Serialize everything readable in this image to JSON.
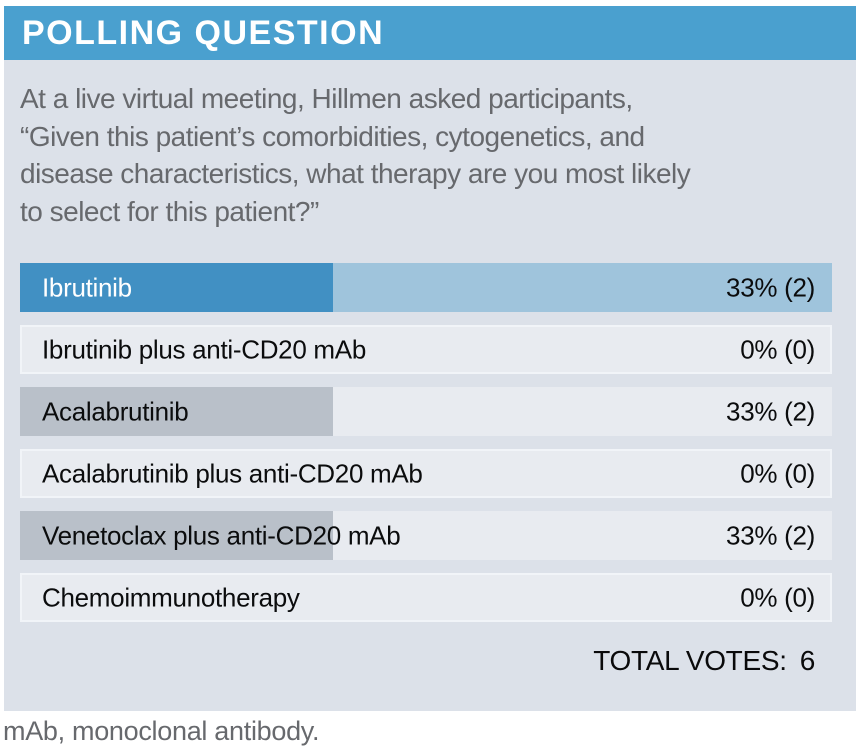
{
  "header": {
    "title": "POLLING QUESTION"
  },
  "question": "At a live virtual meeting, Hillmen asked participants,\n“Given this patient’s comorbidities, cytogenetics, and\ndisease characteristics, what therapy are you most likely\nto select for this patient?”",
  "results": {
    "options": [
      {
        "label": "Ibrutinib",
        "value_display": "33% (2)",
        "percent": 33,
        "count": 2,
        "fill": "blue",
        "bar_width_pct": 38.5
      },
      {
        "label": "Ibrutinib plus anti-CD20 mAb",
        "value_display": "0% (0)",
        "percent": 0,
        "count": 0,
        "fill": "none",
        "bar_width_pct": 0
      },
      {
        "label": "Acalabrutinib",
        "value_display": "33% (2)",
        "percent": 33,
        "count": 2,
        "fill": "gray",
        "bar_width_pct": 38.5
      },
      {
        "label": "Acalabrutinib plus anti-CD20 mAb",
        "value_display": "0% (0)",
        "percent": 0,
        "count": 0,
        "fill": "none",
        "bar_width_pct": 0
      },
      {
        "label": "Venetoclax plus anti-CD20 mAb",
        "value_display": "33% (2)",
        "percent": 33,
        "count": 2,
        "fill": "gray",
        "bar_width_pct": 38.5
      },
      {
        "label": "Chemoimmunotherapy",
        "value_display": "0% (0)",
        "percent": 0,
        "count": 0,
        "fill": "none",
        "bar_width_pct": 0
      }
    ],
    "total_label": "TOTAL VOTES:",
    "total_value": "6"
  },
  "footnote": "mAb, monoclonal antibody.",
  "chart_data": {
    "type": "bar",
    "orientation": "horizontal",
    "title": "POLLING QUESTION",
    "question": "At a live virtual meeting, Hillmen asked participants, “Given this patient’s comorbidities, cytogenetics, and disease characteristics, what therapy are you most likely to select for this patient?”",
    "categories": [
      "Ibrutinib",
      "Ibrutinib plus anti-CD20 mAb",
      "Acalabrutinib",
      "Acalabrutinib plus anti-CD20 mAb",
      "Venetoclax plus anti-CD20 mAb",
      "Chemoimmunotherapy"
    ],
    "values": [
      33,
      0,
      33,
      0,
      33,
      0
    ],
    "counts": [
      2,
      0,
      2,
      0,
      2,
      0
    ],
    "bar_labels": [
      "33% (2)",
      "0% (0)",
      "33% (2)",
      "0% (0)",
      "33% (2)",
      "0% (0)"
    ],
    "unit": "percent",
    "total_votes": 6,
    "highlighted_category": "Ibrutinib",
    "footnote": "mAb, monoclonal antibody."
  },
  "colors": {
    "header_bg": "#4AA0CF",
    "highlight_bar": "#4190C3",
    "highlight_track": "#9FC4DC",
    "neutral_bar": "#B9C0C9",
    "card_bg": "#DCE1E9",
    "row_bg": "#E8EBF0",
    "row_border": "#F1F4F8",
    "question_text": "#67696D",
    "label_text": "#0B0C0D",
    "header_text": "#FFFFFF"
  }
}
